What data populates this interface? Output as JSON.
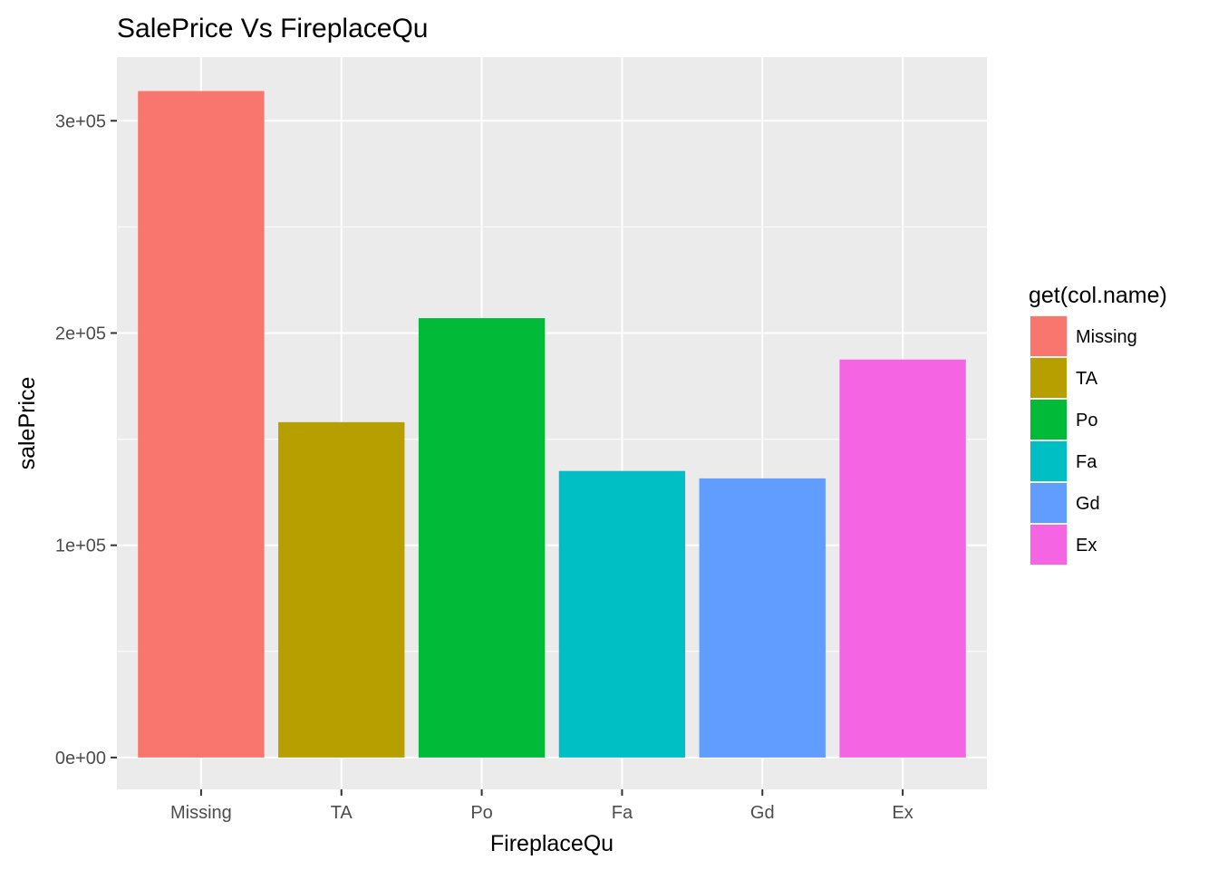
{
  "chart_data": {
    "type": "bar",
    "title": "SalePrice Vs FireplaceQu",
    "xlabel": "FireplaceQu",
    "ylabel": "salePrice",
    "categories": [
      "Missing",
      "TA",
      "Po",
      "Fa",
      "Gd",
      "Ex"
    ],
    "values": [
      314000,
      158000,
      207000,
      135000,
      131500,
      187500
    ],
    "colors": [
      "#F8766D",
      "#B79F00",
      "#00BA38",
      "#00BFC4",
      "#619CFF",
      "#F564E3"
    ],
    "ylim": [
      -15000,
      330000
    ],
    "yticks": [
      0,
      100000,
      200000,
      300000
    ],
    "ytick_labels": [
      "0e+00",
      "1e+05",
      "2e+05",
      "3e+05"
    ],
    "grid": true,
    "panel_background": "#EBEBEB",
    "legend": {
      "title": "get(col.name)",
      "position": "right",
      "items": [
        "Missing",
        "TA",
        "Po",
        "Fa",
        "Gd",
        "Ex"
      ]
    }
  }
}
